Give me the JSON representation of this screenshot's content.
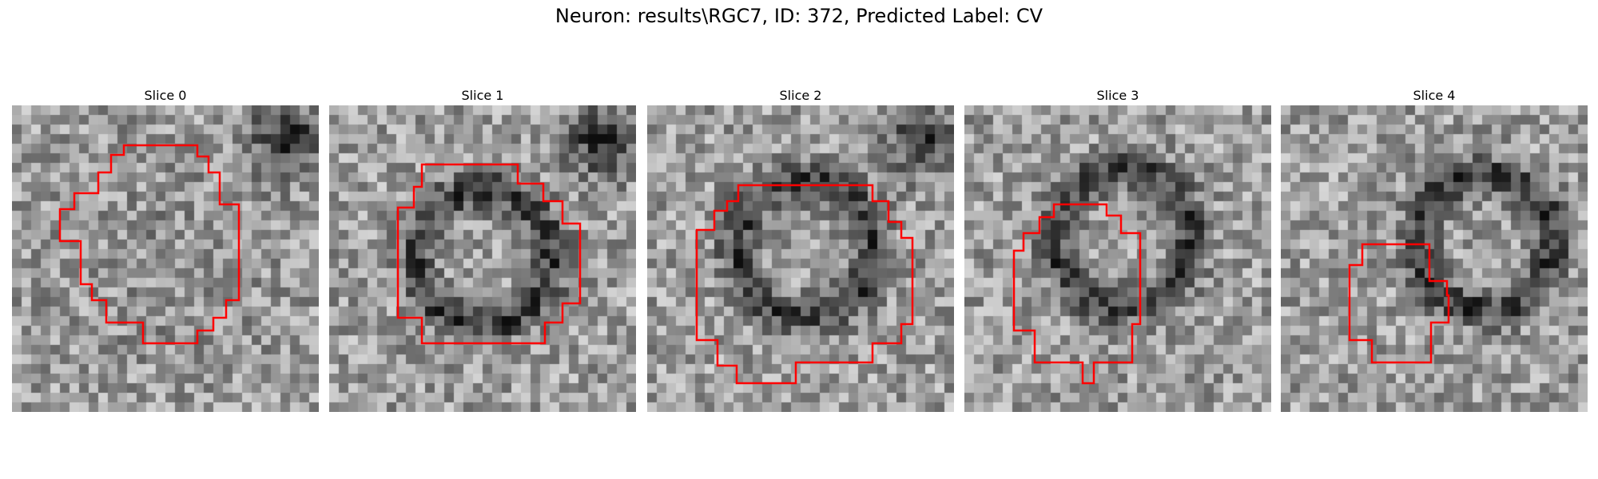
{
  "figure": {
    "title": "Neuron: results\\RGC7, ID: 372, Predicted Label: CV"
  },
  "panels": [
    {
      "title": "Slice 0",
      "darkness_center": [
        0.5,
        0.5
      ],
      "ring": false
    },
    {
      "title": "Slice 1",
      "darkness_center": [
        0.49,
        0.48
      ],
      "ring": true
    },
    {
      "title": "Slice 2",
      "darkness_center": [
        0.5,
        0.45
      ],
      "ring": true
    },
    {
      "title": "Slice 3",
      "darkness_center": [
        0.5,
        0.42
      ],
      "ring": true
    },
    {
      "title": "Slice 4",
      "darkness_center": [
        0.65,
        0.43
      ],
      "ring": true
    }
  ],
  "colors": {
    "contour": "#ff0000"
  }
}
